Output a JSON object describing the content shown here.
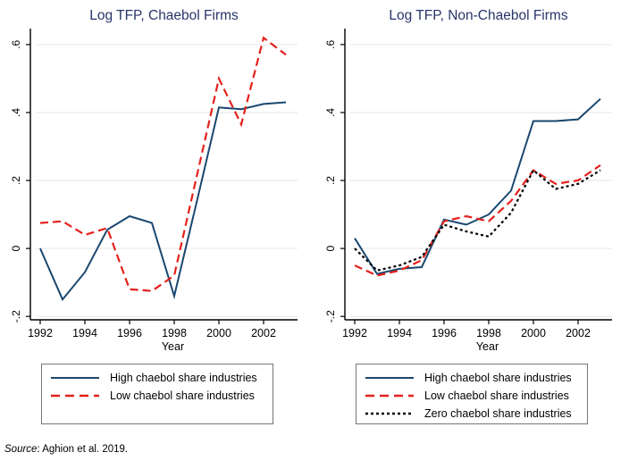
{
  "source": {
    "label": "Source",
    "text": ": Aghion et al. 2019."
  },
  "colors": {
    "title": "#283569",
    "high_line": "#1a476f",
    "low_line": "#e3211c",
    "zero_line": "#000000",
    "grid": "#e6e6e6",
    "axis": "#000000"
  },
  "chart_data": [
    {
      "type": "line",
      "title": "Log TFP, Chaebol Firms",
      "xlabel": "Year",
      "grid": true,
      "legend_position": "bottom",
      "x": [
        1992,
        1993,
        1994,
        1995,
        1996,
        1997,
        1998,
        1999,
        2000,
        2001,
        2002,
        2003
      ],
      "x_ticks": [
        1992,
        1994,
        1996,
        1998,
        2000,
        2002
      ],
      "y_ticks": [
        {
          "v": -0.2,
          "label": "-.2"
        },
        {
          "v": 0,
          "label": "0"
        },
        {
          "v": 0.2,
          "label": ".2"
        },
        {
          "v": 0.4,
          "label": ".4"
        },
        {
          "v": 0.6,
          "label": ".6"
        }
      ],
      "xlim": [
        1991.56,
        2003.52
      ],
      "ylim": [
        -0.21,
        0.647
      ],
      "series": [
        {
          "name": "High chaebol share industries",
          "color": "#1a476f",
          "style": "solid",
          "values": [
            0.0,
            -0.15,
            -0.07,
            0.055,
            0.095,
            0.075,
            -0.14,
            0.135,
            0.415,
            0.41,
            0.425,
            0.43
          ]
        },
        {
          "name": "Low chaebol share industries",
          "color": "#e3211c",
          "style": "long-dash",
          "values": [
            0.075,
            0.08,
            0.04,
            0.06,
            -0.12,
            -0.125,
            -0.08,
            0.21,
            0.5,
            0.365,
            0.62,
            0.57
          ]
        }
      ]
    },
    {
      "type": "line",
      "title": "Log TFP, Non-Chaebol Firms",
      "xlabel": "Year",
      "grid": true,
      "legend_position": "bottom",
      "x": [
        1992,
        1993,
        1994,
        1995,
        1996,
        1997,
        1998,
        1999,
        2000,
        2001,
        2002,
        2003
      ],
      "x_ticks": [
        1992,
        1994,
        1996,
        1998,
        2000,
        2002
      ],
      "y_ticks": [
        {
          "v": -0.2,
          "label": "-.2"
        },
        {
          "v": 0,
          "label": "0"
        },
        {
          "v": 0.2,
          "label": ".2"
        },
        {
          "v": 0.4,
          "label": ".4"
        },
        {
          "v": 0.6,
          "label": ".6"
        }
      ],
      "xlim": [
        1991.56,
        2003.52
      ],
      "ylim": [
        -0.21,
        0.647
      ],
      "series": [
        {
          "name": "High chaebol share industries",
          "color": "#1a476f",
          "style": "solid",
          "values": [
            0.03,
            -0.075,
            -0.06,
            -0.055,
            0.085,
            0.07,
            0.1,
            0.17,
            0.375,
            0.375,
            0.38,
            0.44
          ]
        },
        {
          "name": "Low chaebol share industries",
          "color": "#e3211c",
          "style": "long-dash",
          "values": [
            -0.05,
            -0.08,
            -0.065,
            -0.035,
            0.08,
            0.095,
            0.08,
            0.14,
            0.23,
            0.19,
            0.2,
            0.245
          ]
        },
        {
          "name": "Zero chaebol share industries",
          "color": "#000000",
          "style": "dot",
          "values": [
            0.0,
            -0.065,
            -0.05,
            -0.025,
            0.07,
            0.05,
            0.035,
            0.105,
            0.23,
            0.175,
            0.19,
            0.23
          ]
        }
      ]
    }
  ]
}
